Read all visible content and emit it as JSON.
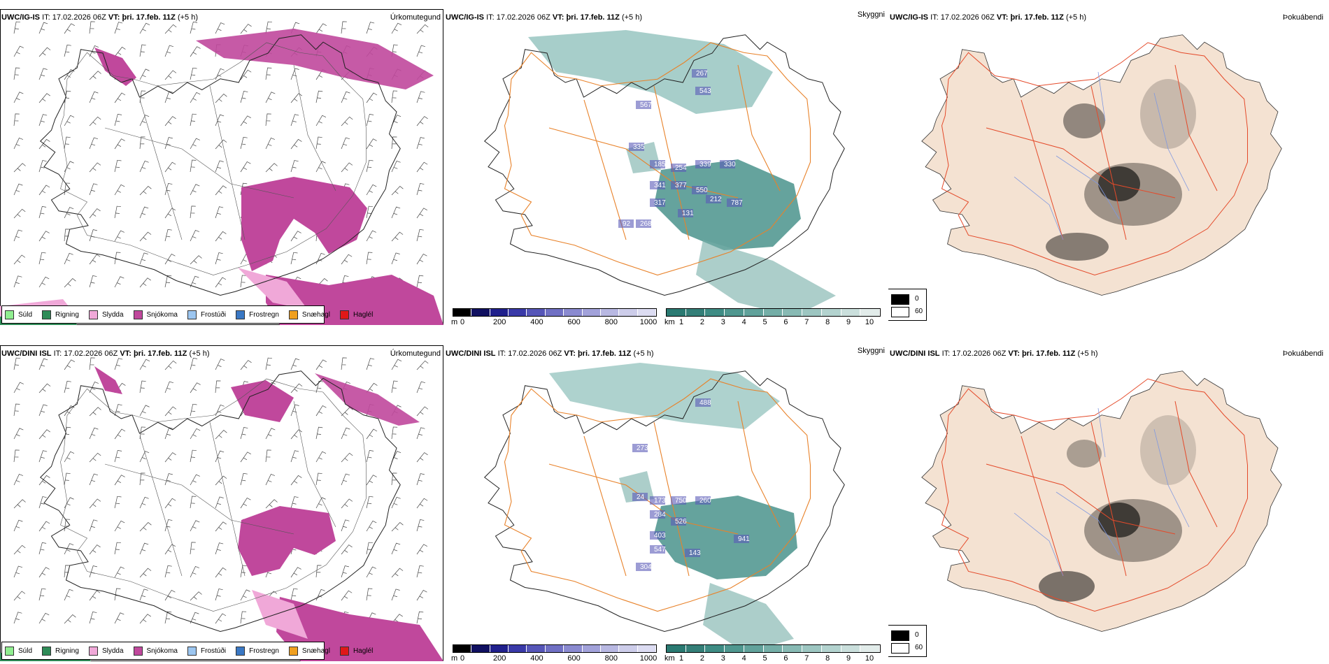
{
  "rows": [
    {
      "model": "UWC/IG-IS",
      "it_label": "IT:",
      "it_value": "17.02.2026 06Z",
      "vt_label": "VT:",
      "vt_value": "þri. 17.feb. 11Z",
      "lead": "(+5 h)",
      "panel_left_title": "Úrkomutegund",
      "panel_mid_title": "Skyggni",
      "panel_right_title": "Þokuábendi",
      "cloud_labels": [
        "267",
        "543",
        "567",
        "335",
        "185",
        "254",
        "339",
        "330",
        "341",
        "377",
        "550",
        "212",
        "787",
        "317",
        "131",
        "92",
        "268"
      ]
    },
    {
      "model": "UWC/DINI ISL",
      "it_label": "IT:",
      "it_value": "17.02.2026 06Z",
      "vt_label": "VT:",
      "vt_value": "þri. 17.feb. 11Z",
      "lead": "(+5 h)",
      "panel_left_title": "Úrkomutegund",
      "panel_mid_title": "Skyggni",
      "panel_right_title": "Þokuábendi",
      "cloud_labels": [
        "488",
        "273",
        "24",
        "173",
        "750",
        "260",
        "284",
        "526",
        "403",
        "941",
        "547",
        "143",
        "304"
      ]
    }
  ],
  "precip_legend": [
    {
      "label": "Súld",
      "color": "#90ee90"
    },
    {
      "label": "Rigning",
      "color": "#2e8b57"
    },
    {
      "label": "Slydda",
      "color": "#f0a8d8"
    },
    {
      "label": "Snjókoma",
      "color": "#c0489c"
    },
    {
      "label": "Frostúði",
      "color": "#9cc6f0"
    },
    {
      "label": "Frostregn",
      "color": "#3a78c4"
    },
    {
      "label": "Snæhagl",
      "color": "#f0a020"
    },
    {
      "label": "Haglél",
      "color": "#e01818"
    }
  ],
  "ceiling_bar": {
    "unit": "m",
    "ticks": [
      "0",
      "200",
      "400",
      "600",
      "800",
      "1000"
    ],
    "colors": [
      "#000000",
      "#101060",
      "#20208c",
      "#3a3aa8",
      "#5656b8",
      "#7070c4",
      "#8a8ad0",
      "#a2a2da",
      "#b8b8e2",
      "#cdcdea",
      "#dcdcf2"
    ]
  },
  "visibility_bar": {
    "unit": "km",
    "ticks": [
      "1",
      "2",
      "3",
      "4",
      "5",
      "6",
      "7",
      "8",
      "9",
      "10"
    ],
    "colors": [
      "#2a7a72",
      "#347f78",
      "#3e8c84",
      "#4f978f",
      "#61a29b",
      "#74aea7",
      "#88bab4",
      "#9dc6c1",
      "#b3d3cf",
      "#cadfdc",
      "#e2ecea"
    ]
  },
  "fog_legend": {
    "values": [
      "0",
      "60"
    ]
  }
}
